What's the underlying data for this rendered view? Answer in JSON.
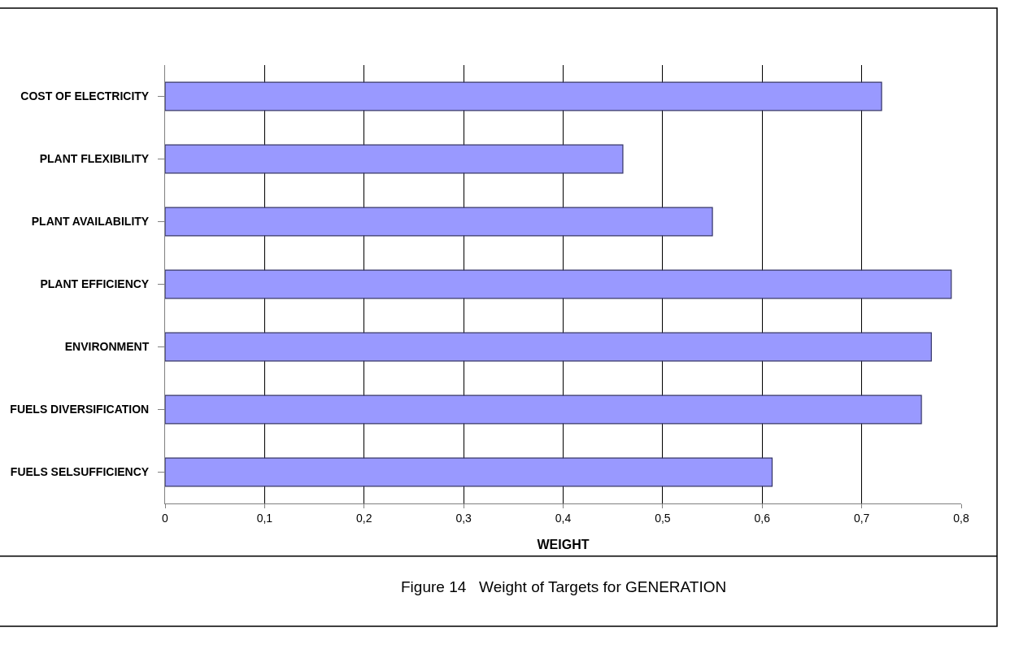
{
  "chart_data": {
    "type": "bar",
    "orientation": "horizontal",
    "xlabel": "WEIGHT",
    "categories": [
      "COST OF ELECTRICITY",
      "PLANT FLEXIBILITY",
      "PLANT AVAILABILITY",
      "PLANT EFFICIENCY",
      "ENVIRONMENT",
      "FUELS DIVERSIFICATION",
      "FUELS SELSUFFICIENCY"
    ],
    "values": [
      0.72,
      0.46,
      0.55,
      0.79,
      0.77,
      0.76,
      0.61
    ],
    "color": "#9999ff",
    "xlim": [
      0,
      0.8
    ],
    "xticks": [
      0,
      {
        "value": 0.1,
        "label": "0,1"
      },
      {
        "value": 0.2,
        "label": "0,2"
      },
      {
        "value": 0.3,
        "label": "0,3"
      },
      {
        "value": 0.4,
        "label": "0,4"
      },
      {
        "value": 0.5,
        "label": "0,5"
      },
      {
        "value": 0.6,
        "label": "0,6"
      },
      {
        "value": 0.7,
        "label": "0,7"
      },
      {
        "value": 0.8,
        "label": "0,8"
      }
    ],
    "grid": "x",
    "annotations": [
      "Figure 14   Weight of Targets for GENERATION"
    ]
  }
}
